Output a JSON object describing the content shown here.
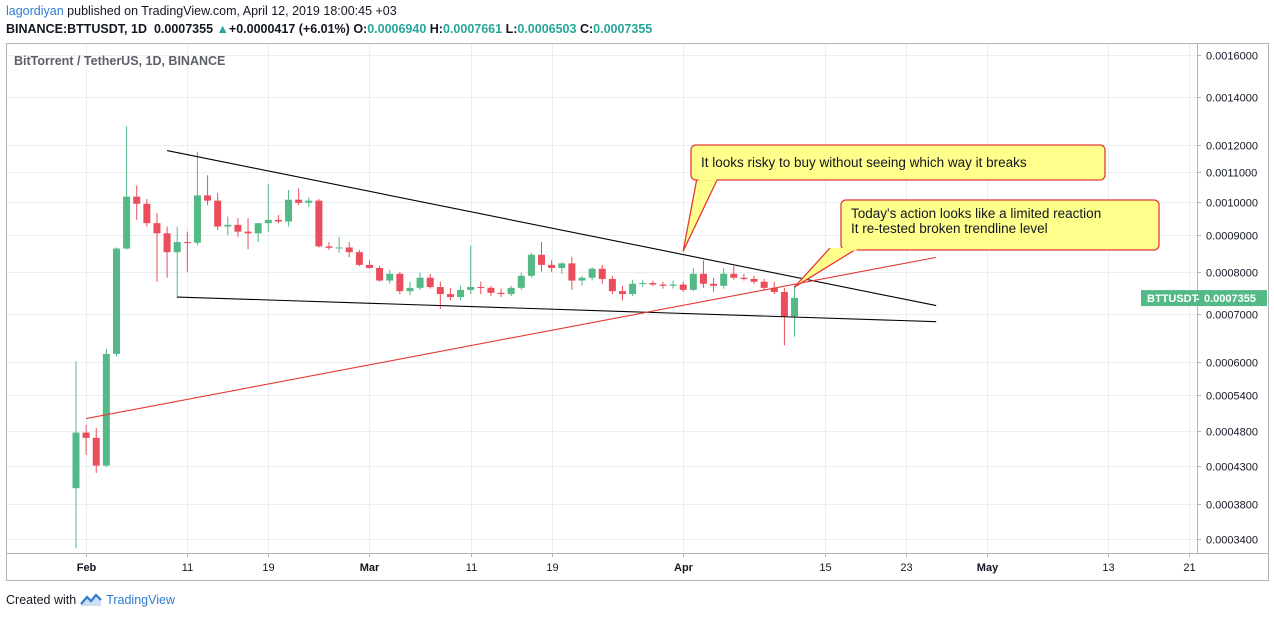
{
  "header": {
    "user": "lagordiyan",
    "published": "published on TradingView.com, April 12, 2019 18:00:45 +03",
    "symbol": "BINANCE:BTTUSDT, 1D",
    "last": "0.0007355",
    "change": "+0.0000417 (+6.01%)",
    "o_label": "O:",
    "o_value": "0.0006940",
    "h_label": "H:",
    "h_value": "0.0007661",
    "l_label": "L:",
    "l_value": "0.0006503",
    "c_label": "C:",
    "c_value": "0.0007355"
  },
  "footer": {
    "created_with": "Created with",
    "brand": "TradingView"
  },
  "colors": {
    "up": "#53b987",
    "down": "#eb4d5c",
    "grid": "#e9eef2",
    "trendline": "#000000",
    "support": "#e53935",
    "callout_fill": "#ffff8c",
    "callout_border": "#e53935",
    "price_tag": "#53b987"
  },
  "chart_data": {
    "type": "candlestick",
    "title": "BitTorrent / TetherUS, 1D, BINANCE",
    "y_scale": "log",
    "ylim": [
      0.000325,
      0.00166
    ],
    "y_ticks": [
      "0.0016000",
      "0.0014000",
      "0.0012000",
      "0.0011000",
      "0.0010000",
      "0.0009000",
      "0.0008000",
      "0.0007000",
      "0.0006000",
      "0.0005400",
      "0.0004800",
      "0.0004300",
      "0.0003800",
      "0.0003400"
    ],
    "x_range": [
      "2019-01-31",
      "2019-05-21"
    ],
    "x_ticks": [
      {
        "date": "2019-02-01",
        "label": "Feb",
        "bold": true
      },
      {
        "date": "2019-02-11",
        "label": "11",
        "bold": false
      },
      {
        "date": "2019-02-19",
        "label": "19",
        "bold": false
      },
      {
        "date": "2019-03-01",
        "label": "Mar",
        "bold": true
      },
      {
        "date": "2019-03-11",
        "label": "11",
        "bold": false
      },
      {
        "date": "2019-03-19",
        "label": "19",
        "bold": false
      },
      {
        "date": "2019-04-01",
        "label": "Apr",
        "bold": true
      },
      {
        "date": "2019-04-15",
        "label": "15",
        "bold": false
      },
      {
        "date": "2019-04-23",
        "label": "23",
        "bold": false
      },
      {
        "date": "2019-05-01",
        "label": "May",
        "bold": true
      },
      {
        "date": "2019-05-13",
        "label": "13",
        "bold": false
      },
      {
        "date": "2019-05-21",
        "label": "21",
        "bold": false
      }
    ],
    "ohlc_columns": [
      "date",
      "open",
      "high",
      "low",
      "close"
    ],
    "ohlc": [
      [
        "2019-01-31",
        0.0004,
        0.0006,
        0.00033,
        0.000478
      ],
      [
        "2019-02-01",
        0.000478,
        0.00049,
        0.000445,
        0.00047
      ],
      [
        "2019-02-02",
        0.00047,
        0.000485,
        0.00042,
        0.00043
      ],
      [
        "2019-02-03",
        0.00043,
        0.000625,
        0.000428,
        0.000615
      ],
      [
        "2019-02-04",
        0.000615,
        0.000865,
        0.00061,
        0.000862
      ],
      [
        "2019-02-05",
        0.000862,
        0.001275,
        0.00086,
        0.001018
      ],
      [
        "2019-02-06",
        0.001018,
        0.001055,
        0.000945,
        0.000995
      ],
      [
        "2019-02-07",
        0.000995,
        0.00101,
        0.000925,
        0.000935
      ],
      [
        "2019-02-08",
        0.000935,
        0.000965,
        0.000775,
        0.000905
      ],
      [
        "2019-02-09",
        0.000905,
        0.000925,
        0.000785,
        0.000852
      ],
      [
        "2019-02-10",
        0.000852,
        0.000925,
        0.000735,
        0.00088
      ],
      [
        "2019-02-11",
        0.00088,
        0.00091,
        0.0008,
        0.000878
      ],
      [
        "2019-02-12",
        0.000878,
        0.001175,
        0.00087,
        0.001022
      ],
      [
        "2019-02-13",
        0.001022,
        0.00109,
        0.00099,
        0.001005
      ],
      [
        "2019-02-14",
        0.001005,
        0.00103,
        0.000915,
        0.000925
      ],
      [
        "2019-02-15",
        0.000925,
        0.000955,
        0.0009,
        0.00093
      ],
      [
        "2019-02-16",
        0.00093,
        0.00095,
        0.000895,
        0.00091
      ],
      [
        "2019-02-17",
        0.00091,
        0.00095,
        0.00086,
        0.000905
      ],
      [
        "2019-02-18",
        0.000905,
        0.000935,
        0.00088,
        0.000935
      ],
      [
        "2019-02-19",
        0.000935,
        0.00106,
        0.00091,
        0.000945
      ],
      [
        "2019-02-20",
        0.000945,
        0.00096,
        0.000935,
        0.00094
      ],
      [
        "2019-02-21",
        0.00094,
        0.00104,
        0.000925,
        0.001008
      ],
      [
        "2019-02-22",
        0.001008,
        0.001045,
        0.00099,
        0.000998
      ],
      [
        "2019-02-23",
        0.000998,
        0.001015,
        0.000985,
        0.001005
      ],
      [
        "2019-02-24",
        0.001005,
        0.00101,
        0.000865,
        0.000868
      ],
      [
        "2019-02-25",
        0.000868,
        0.00088,
        0.000858,
        0.000864
      ],
      [
        "2019-02-26",
        0.000864,
        0.000895,
        0.00085,
        0.000865
      ],
      [
        "2019-02-27",
        0.000865,
        0.00088,
        0.000838,
        0.000852
      ],
      [
        "2019-02-28",
        0.000852,
        0.000858,
        0.000815,
        0.000818
      ],
      [
        "2019-03-01",
        0.000818,
        0.00083,
        0.000808,
        0.00081
      ],
      [
        "2019-03-02",
        0.00081,
        0.000815,
        0.000775,
        0.000778
      ],
      [
        "2019-03-03",
        0.000778,
        0.000805,
        0.00077,
        0.000795
      ],
      [
        "2019-03-04",
        0.000795,
        0.0008,
        0.000745,
        0.000752
      ],
      [
        "2019-03-05",
        0.000752,
        0.000775,
        0.000742,
        0.00076
      ],
      [
        "2019-03-06",
        0.00076,
        0.000798,
        0.000755,
        0.000785
      ],
      [
        "2019-03-07",
        0.000785,
        0.000795,
        0.000758,
        0.000762
      ],
      [
        "2019-03-08",
        0.000762,
        0.000775,
        0.00071,
        0.000745
      ],
      [
        "2019-03-09",
        0.000745,
        0.00076,
        0.00073,
        0.000738
      ],
      [
        "2019-03-10",
        0.000738,
        0.000765,
        0.00073,
        0.000755
      ],
      [
        "2019-03-11",
        0.000755,
        0.00087,
        0.000745,
        0.000762
      ],
      [
        "2019-03-12",
        0.000762,
        0.000775,
        0.000745,
        0.00076
      ],
      [
        "2019-03-13",
        0.00076,
        0.000765,
        0.00074,
        0.000748
      ],
      [
        "2019-03-14",
        0.000748,
        0.000758,
        0.000738,
        0.000745
      ],
      [
        "2019-03-15",
        0.000745,
        0.000765,
        0.00074,
        0.00076
      ],
      [
        "2019-03-16",
        0.00076,
        0.000798,
        0.000755,
        0.00079
      ],
      [
        "2019-03-17",
        0.00079,
        0.00085,
        0.000785,
        0.000845
      ],
      [
        "2019-03-18",
        0.000845,
        0.00088,
        0.0008,
        0.000818
      ],
      [
        "2019-03-19",
        0.000818,
        0.00083,
        0.0008,
        0.00081
      ],
      [
        "2019-03-20",
        0.00081,
        0.000825,
        0.000795,
        0.000822
      ],
      [
        "2019-03-21",
        0.000822,
        0.00084,
        0.000755,
        0.000778
      ],
      [
        "2019-03-22",
        0.000778,
        0.00079,
        0.000765,
        0.000785
      ],
      [
        "2019-03-23",
        0.000785,
        0.000812,
        0.000778,
        0.000808
      ],
      [
        "2019-03-24",
        0.000808,
        0.000818,
        0.00077,
        0.000782
      ],
      [
        "2019-03-25",
        0.000782,
        0.00079,
        0.000745,
        0.000752
      ],
      [
        "2019-03-26",
        0.000752,
        0.000765,
        0.00073,
        0.000745
      ],
      [
        "2019-03-27",
        0.000745,
        0.00078,
        0.00074,
        0.00077
      ],
      [
        "2019-03-28",
        0.00077,
        0.00078,
        0.000762,
        0.000772
      ],
      [
        "2019-03-29",
        0.000772,
        0.000778,
        0.000765,
        0.000768
      ],
      [
        "2019-03-30",
        0.000768,
        0.000775,
        0.000758,
        0.000765
      ],
      [
        "2019-03-31",
        0.000765,
        0.000778,
        0.000758,
        0.000768
      ],
      [
        "2019-04-01",
        0.000768,
        0.000775,
        0.00075,
        0.000755
      ],
      [
        "2019-04-02",
        0.000755,
        0.00081,
        0.000752,
        0.000795
      ],
      [
        "2019-04-03",
        0.000795,
        0.00083,
        0.00076,
        0.00077
      ],
      [
        "2019-04-04",
        0.00077,
        0.000785,
        0.00075,
        0.000765
      ],
      [
        "2019-04-05",
        0.000765,
        0.00081,
        0.000758,
        0.000795
      ],
      [
        "2019-04-06",
        0.000795,
        0.000815,
        0.00078,
        0.000785
      ],
      [
        "2019-04-07",
        0.000785,
        0.000795,
        0.000778,
        0.000782
      ],
      [
        "2019-04-08",
        0.000782,
        0.00079,
        0.00077,
        0.000775
      ],
      [
        "2019-04-09",
        0.000775,
        0.000782,
        0.000755,
        0.00076
      ],
      [
        "2019-04-10",
        0.00076,
        0.000775,
        0.000745,
        0.00075
      ],
      [
        "2019-04-11",
        0.00075,
        0.00076,
        0.000632,
        0.000694
      ],
      [
        "2019-04-12",
        0.000694,
        0.000766,
        0.00065,
        0.000736
      ]
    ],
    "trendlines": [
      {
        "name": "upper",
        "color": "#000000",
        "from": [
          "2019-02-09",
          0.00118
        ],
        "to": [
          "2019-04-26",
          0.000718
        ]
      },
      {
        "name": "lower",
        "color": "#000000",
        "from": [
          "2019-02-10",
          0.000738
        ],
        "to": [
          "2019-04-26",
          0.000682
        ]
      },
      {
        "name": "support",
        "color": "#e53935",
        "from": [
          "2019-02-01",
          0.0005
        ],
        "to": [
          "2019-04-26",
          0.000838
        ]
      }
    ],
    "annotations": [
      {
        "lines": [
          "It looks risky to buy without seeing which way it breaks"
        ],
        "anchor": [
          "2019-04-01",
          0.000855
        ]
      },
      {
        "lines": [
          "Today's action looks like a limited reaction",
          "It re-tested broken trendline level"
        ],
        "anchor": [
          "2019-04-12",
          0.000762
        ]
      }
    ],
    "price_tag": {
      "label": "BTTUSDT",
      "value": "0.0007355"
    },
    "grid": true
  }
}
